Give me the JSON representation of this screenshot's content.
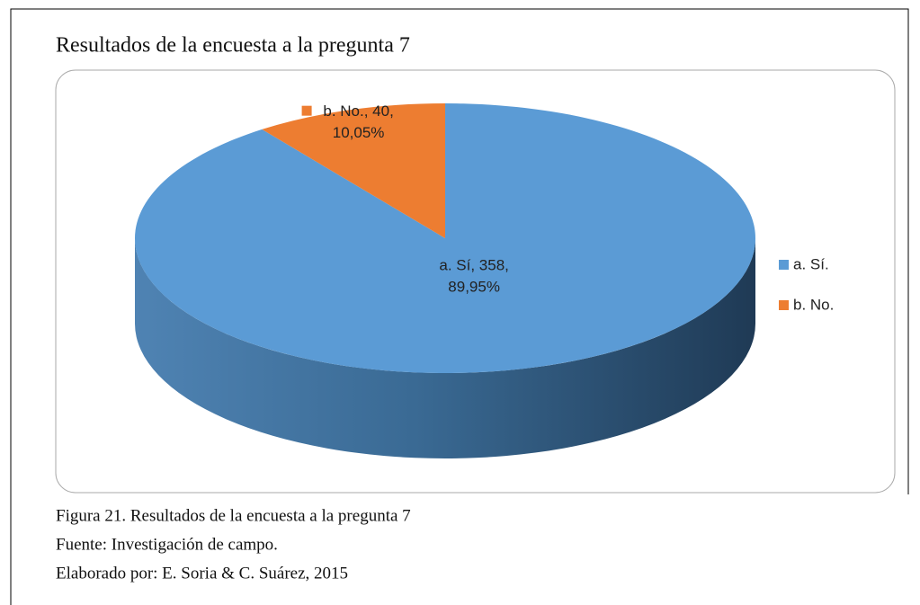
{
  "chart_data": {
    "type": "pie",
    "title": "Resultados de la encuesta a la pregunta 7",
    "categories": [
      "a.   Sí.",
      "b.   No."
    ],
    "values": [
      358,
      40
    ],
    "value_labels": [
      [
        "a.   Sí, 358,",
        "89,95%"
      ],
      [
        "b.  No., 40,",
        "10,05%"
      ]
    ],
    "colors": [
      "#5b9bd5",
      "#ed7d31"
    ],
    "legend": "right"
  },
  "caption": [
    "Figura 21. Resultados de la encuesta a la pregunta 7",
    "Fuente: Investigación de campo.",
    "Elaborado por: E. Soria & C. Suárez, 2015"
  ]
}
